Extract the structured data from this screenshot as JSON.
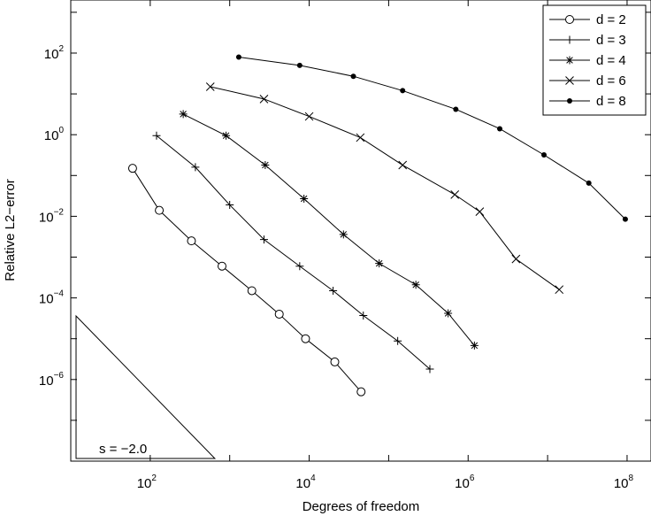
{
  "chart_data": {
    "type": "line",
    "title": "",
    "xlabel": "Degrees of freedom",
    "ylabel": "Relative L2−error",
    "xscale": "log",
    "yscale": "log",
    "xlim": [
      10,
      200000000
    ],
    "ylim": [
      1e-08,
      2000
    ],
    "grid": false,
    "legend_position": "top-right",
    "x_ticks": [
      {
        "base": "10",
        "exp": "2",
        "value": 100
      },
      {
        "base": "10",
        "exp": "4",
        "value": 10000
      },
      {
        "base": "10",
        "exp": "6",
        "value": 1000000
      },
      {
        "base": "10",
        "exp": "8",
        "value": 100000000
      }
    ],
    "y_ticks": [
      {
        "base": "10",
        "exp": "2",
        "value": 100
      },
      {
        "base": "10",
        "exp": "0",
        "value": 1
      },
      {
        "base": "10",
        "exp": "−2",
        "value": 0.01
      },
      {
        "base": "10",
        "exp": "−4",
        "value": 0.0001
      },
      {
        "base": "10",
        "exp": "−6",
        "value": 1e-06
      }
    ],
    "series": [
      {
        "name": "d = 2",
        "marker": "circle",
        "x": [
          60,
          130,
          330,
          800,
          1900,
          4200,
          9000,
          21000,
          45000
        ],
        "y": [
          0.15,
          0.014,
          0.0025,
          0.0006,
          0.00015,
          4e-05,
          1e-05,
          2.7e-06,
          5e-07
        ]
      },
      {
        "name": "d = 3",
        "marker": "plus",
        "x": [
          120,
          370,
          1000,
          2700,
          7600,
          20000,
          48000,
          130000,
          330000
        ],
        "y": [
          0.95,
          0.16,
          0.019,
          0.0027,
          0.0006,
          0.00015,
          3.7e-05,
          8.8e-06,
          1.8e-06
        ]
      },
      {
        "name": "d = 4",
        "marker": "asterisk",
        "x": [
          260,
          900,
          2800,
          8600,
          27000,
          76000,
          220000,
          560000,
          1200000
        ],
        "y": [
          3.2,
          0.95,
          0.18,
          0.027,
          0.0036,
          0.0007,
          0.00021,
          4.2e-05,
          6.8e-06
        ]
      },
      {
        "name": "d = 6",
        "marker": "cross",
        "x": [
          570,
          2700,
          10000,
          44000,
          150000,
          680000,
          1400000,
          4000000,
          14000000
        ],
        "y": [
          15,
          7.5,
          2.8,
          0.85,
          0.18,
          0.034,
          0.013,
          0.0009,
          0.00016
        ]
      },
      {
        "name": "d = 8",
        "marker": "dot",
        "x": [
          1300,
          7600,
          36000,
          150000,
          700000,
          2500000,
          9000000,
          33000000,
          95000000
        ],
        "y": [
          80,
          50,
          27,
          12,
          4.2,
          1.4,
          0.32,
          0.065,
          0.0085
        ]
      }
    ],
    "annotation": {
      "label": "s = −2.0",
      "slope": -2.0
    }
  }
}
